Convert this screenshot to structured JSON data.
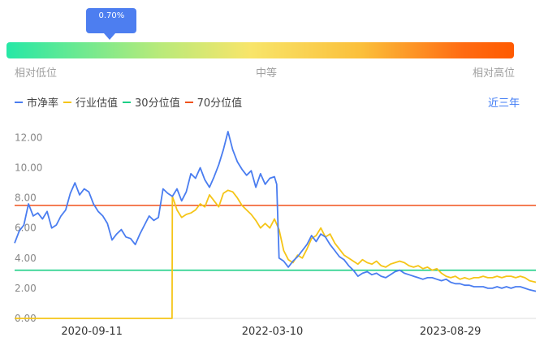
{
  "gauge": {
    "marker_label": "0.70%",
    "marker_value": 0.007,
    "label_low": "相对低位",
    "label_mid": "中等",
    "label_high": "相对高位"
  },
  "legend": {
    "items": [
      {
        "label": "市净率",
        "color": "#4a7df0"
      },
      {
        "label": "行业估值",
        "color": "#f5c518"
      },
      {
        "label": "30分位值",
        "color": "#1ccf86"
      },
      {
        "label": "70分位值",
        "color": "#f0521c"
      }
    ]
  },
  "period_button": "近三年",
  "colors": {
    "pb": "#4a7df0",
    "industry": "#f5c518",
    "p30": "#1ccf86",
    "p70": "#f0521c",
    "tooltip": "#4d7ef0"
  },
  "chart_data": {
    "type": "line",
    "title": "",
    "xlabel": "",
    "ylabel": "",
    "ylim": [
      0,
      12.4
    ],
    "yticks": [
      "0.00",
      "2.00",
      "4.00",
      "6.00",
      "8.00",
      "10.00",
      "12.00"
    ],
    "xticks": [
      {
        "date": "2020-09-11",
        "label": "2020-09-11"
      },
      {
        "date": "2022-03-10",
        "label": "2022-03-10"
      },
      {
        "date": "2023-08-29",
        "label": "2023-08-29"
      }
    ],
    "xrange": [
      "2020-01-22",
      "2024-05-13"
    ],
    "hlines": [
      {
        "name": "30分位值",
        "value": 3.2
      },
      {
        "name": "70分位值",
        "value": 7.5
      }
    ],
    "series": [
      {
        "name": "市净率",
        "points": [
          [
            "2020-01-22",
            5.0
          ],
          [
            "2020-02-05",
            5.8
          ],
          [
            "2020-02-19",
            6.2
          ],
          [
            "2020-03-04",
            7.6
          ],
          [
            "2020-03-18",
            6.8
          ],
          [
            "2020-04-01",
            7.0
          ],
          [
            "2020-04-15",
            6.6
          ],
          [
            "2020-04-29",
            7.1
          ],
          [
            "2020-05-13",
            6.0
          ],
          [
            "2020-05-27",
            6.2
          ],
          [
            "2020-06-10",
            6.8
          ],
          [
            "2020-06-24",
            7.2
          ],
          [
            "2020-07-08",
            8.3
          ],
          [
            "2020-07-22",
            9.0
          ],
          [
            "2020-08-05",
            8.2
          ],
          [
            "2020-08-19",
            8.6
          ],
          [
            "2020-09-02",
            8.4
          ],
          [
            "2020-09-16",
            7.6
          ],
          [
            "2020-09-30",
            7.1
          ],
          [
            "2020-10-14",
            6.8
          ],
          [
            "2020-10-28",
            6.3
          ],
          [
            "2020-11-11",
            5.2
          ],
          [
            "2020-11-25",
            5.6
          ],
          [
            "2020-12-09",
            5.9
          ],
          [
            "2020-12-23",
            5.4
          ],
          [
            "2021-01-06",
            5.3
          ],
          [
            "2021-01-20",
            4.9
          ],
          [
            "2021-02-03",
            5.6
          ],
          [
            "2021-02-17",
            6.2
          ],
          [
            "2021-03-03",
            6.8
          ],
          [
            "2021-03-17",
            6.5
          ],
          [
            "2021-03-31",
            6.7
          ],
          [
            "2021-04-14",
            8.6
          ],
          [
            "2021-04-28",
            8.3
          ],
          [
            "2021-05-12",
            8.1
          ],
          [
            "2021-05-26",
            8.6
          ],
          [
            "2021-06-09",
            7.8
          ],
          [
            "2021-06-23",
            8.4
          ],
          [
            "2021-07-07",
            9.6
          ],
          [
            "2021-07-21",
            9.3
          ],
          [
            "2021-08-04",
            10.0
          ],
          [
            "2021-08-18",
            9.2
          ],
          [
            "2021-09-01",
            8.7
          ],
          [
            "2021-09-15",
            9.4
          ],
          [
            "2021-09-29",
            10.2
          ],
          [
            "2021-10-13",
            11.2
          ],
          [
            "2021-10-27",
            12.4
          ],
          [
            "2021-11-10",
            11.2
          ],
          [
            "2021-11-24",
            10.4
          ],
          [
            "2021-12-08",
            9.9
          ],
          [
            "2021-12-22",
            9.5
          ],
          [
            "2022-01-05",
            9.8
          ],
          [
            "2022-01-19",
            8.7
          ],
          [
            "2022-02-02",
            9.6
          ],
          [
            "2022-02-16",
            8.9
          ],
          [
            "2022-03-02",
            9.3
          ],
          [
            "2022-03-16",
            9.4
          ],
          [
            "2022-03-23",
            8.9
          ],
          [
            "2022-03-30",
            4.0
          ],
          [
            "2022-04-13",
            3.8
          ],
          [
            "2022-04-27",
            3.4
          ],
          [
            "2022-05-11",
            3.8
          ],
          [
            "2022-05-25",
            4.1
          ],
          [
            "2022-06-08",
            4.5
          ],
          [
            "2022-06-22",
            4.9
          ],
          [
            "2022-07-06",
            5.5
          ],
          [
            "2022-07-20",
            5.1
          ],
          [
            "2022-08-03",
            5.6
          ],
          [
            "2022-08-17",
            5.4
          ],
          [
            "2022-08-31",
            4.9
          ],
          [
            "2022-09-14",
            4.5
          ],
          [
            "2022-09-28",
            4.1
          ],
          [
            "2022-10-12",
            3.9
          ],
          [
            "2022-10-26",
            3.5
          ],
          [
            "2022-11-09",
            3.2
          ],
          [
            "2022-11-23",
            2.8
          ],
          [
            "2022-12-07",
            3.0
          ],
          [
            "2022-12-21",
            3.1
          ],
          [
            "2023-01-04",
            2.9
          ],
          [
            "2023-01-18",
            3.0
          ],
          [
            "2023-02-01",
            2.8
          ],
          [
            "2023-02-15",
            2.7
          ],
          [
            "2023-03-01",
            2.9
          ],
          [
            "2023-03-15",
            3.1
          ],
          [
            "2023-03-29",
            3.2
          ],
          [
            "2023-04-12",
            3.0
          ],
          [
            "2023-04-26",
            2.9
          ],
          [
            "2023-05-10",
            2.8
          ],
          [
            "2023-05-24",
            2.7
          ],
          [
            "2023-06-07",
            2.6
          ],
          [
            "2023-06-21",
            2.7
          ],
          [
            "2023-07-05",
            2.7
          ],
          [
            "2023-07-19",
            2.6
          ],
          [
            "2023-08-02",
            2.5
          ],
          [
            "2023-08-16",
            2.6
          ],
          [
            "2023-08-30",
            2.4
          ],
          [
            "2023-09-13",
            2.3
          ],
          [
            "2023-09-27",
            2.3
          ],
          [
            "2023-10-11",
            2.2
          ],
          [
            "2023-10-25",
            2.2
          ],
          [
            "2023-11-08",
            2.1
          ],
          [
            "2023-11-22",
            2.1
          ],
          [
            "2023-12-06",
            2.1
          ],
          [
            "2023-12-20",
            2.0
          ],
          [
            "2024-01-03",
            2.0
          ],
          [
            "2024-01-17",
            2.1
          ],
          [
            "2024-01-31",
            2.0
          ],
          [
            "2024-02-14",
            2.1
          ],
          [
            "2024-02-28",
            2.0
          ],
          [
            "2024-03-13",
            2.1
          ],
          [
            "2024-03-27",
            2.1
          ],
          [
            "2024-04-10",
            2.0
          ],
          [
            "2024-04-24",
            1.9
          ],
          [
            "2024-05-13",
            1.8
          ]
        ]
      },
      {
        "name": "行业估值",
        "points": [
          [
            "2020-01-22",
            0.0
          ],
          [
            "2021-05-11",
            0.0
          ],
          [
            "2021-05-12",
            8.1
          ],
          [
            "2021-05-26",
            7.2
          ],
          [
            "2021-06-09",
            6.7
          ],
          [
            "2021-06-23",
            6.9
          ],
          [
            "2021-07-07",
            7.0
          ],
          [
            "2021-07-21",
            7.2
          ],
          [
            "2021-08-04",
            7.6
          ],
          [
            "2021-08-18",
            7.4
          ],
          [
            "2021-09-01",
            8.2
          ],
          [
            "2021-09-15",
            7.8
          ],
          [
            "2021-09-29",
            7.4
          ],
          [
            "2021-10-13",
            8.3
          ],
          [
            "2021-10-27",
            8.5
          ],
          [
            "2021-11-10",
            8.4
          ],
          [
            "2021-11-24",
            8.0
          ],
          [
            "2021-12-08",
            7.5
          ],
          [
            "2021-12-22",
            7.2
          ],
          [
            "2022-01-05",
            6.9
          ],
          [
            "2022-01-19",
            6.5
          ],
          [
            "2022-02-02",
            6.0
          ],
          [
            "2022-02-16",
            6.3
          ],
          [
            "2022-03-02",
            6.0
          ],
          [
            "2022-03-16",
            6.6
          ],
          [
            "2022-03-30",
            5.9
          ],
          [
            "2022-04-13",
            4.5
          ],
          [
            "2022-04-27",
            3.9
          ],
          [
            "2022-05-11",
            3.7
          ],
          [
            "2022-05-25",
            4.2
          ],
          [
            "2022-06-08",
            4.0
          ],
          [
            "2022-06-22",
            4.6
          ],
          [
            "2022-07-06",
            5.3
          ],
          [
            "2022-07-20",
            5.5
          ],
          [
            "2022-08-03",
            6.0
          ],
          [
            "2022-08-17",
            5.4
          ],
          [
            "2022-08-31",
            5.6
          ],
          [
            "2022-09-14",
            5.0
          ],
          [
            "2022-09-28",
            4.6
          ],
          [
            "2022-10-12",
            4.2
          ],
          [
            "2022-10-26",
            4.0
          ],
          [
            "2022-11-09",
            3.8
          ],
          [
            "2022-11-23",
            3.6
          ],
          [
            "2022-12-07",
            3.9
          ],
          [
            "2022-12-21",
            3.7
          ],
          [
            "2023-01-04",
            3.6
          ],
          [
            "2023-01-18",
            3.8
          ],
          [
            "2023-02-01",
            3.5
          ],
          [
            "2023-02-15",
            3.4
          ],
          [
            "2023-03-01",
            3.6
          ],
          [
            "2023-03-15",
            3.7
          ],
          [
            "2023-03-29",
            3.8
          ],
          [
            "2023-04-12",
            3.7
          ],
          [
            "2023-04-26",
            3.5
          ],
          [
            "2023-05-10",
            3.4
          ],
          [
            "2023-05-24",
            3.5
          ],
          [
            "2023-06-07",
            3.3
          ],
          [
            "2023-06-21",
            3.4
          ],
          [
            "2023-07-05",
            3.2
          ],
          [
            "2023-07-19",
            3.3
          ],
          [
            "2023-08-02",
            3.0
          ],
          [
            "2023-08-16",
            2.8
          ],
          [
            "2023-08-30",
            2.7
          ],
          [
            "2023-09-13",
            2.8
          ],
          [
            "2023-09-27",
            2.6
          ],
          [
            "2023-10-11",
            2.7
          ],
          [
            "2023-10-25",
            2.6
          ],
          [
            "2023-11-08",
            2.7
          ],
          [
            "2023-11-22",
            2.7
          ],
          [
            "2023-12-06",
            2.8
          ],
          [
            "2023-12-20",
            2.7
          ],
          [
            "2024-01-03",
            2.7
          ],
          [
            "2024-01-17",
            2.8
          ],
          [
            "2024-01-31",
            2.7
          ],
          [
            "2024-02-14",
            2.8
          ],
          [
            "2024-02-28",
            2.8
          ],
          [
            "2024-03-13",
            2.7
          ],
          [
            "2024-03-27",
            2.8
          ],
          [
            "2024-04-10",
            2.7
          ],
          [
            "2024-04-24",
            2.5
          ],
          [
            "2024-05-13",
            2.4
          ]
        ]
      }
    ]
  }
}
